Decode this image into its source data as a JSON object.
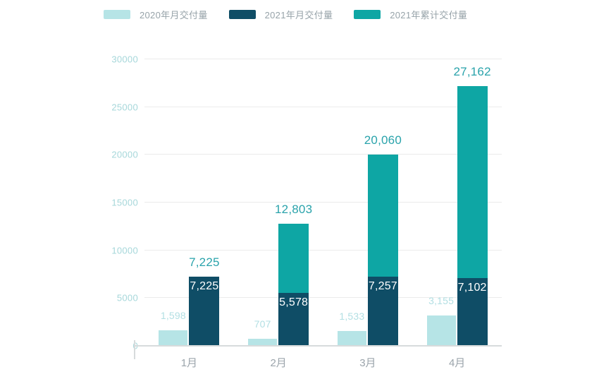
{
  "chart_data": {
    "type": "bar",
    "title": "",
    "categories": [
      "1月",
      "2月",
      "3月",
      "4月"
    ],
    "series": [
      {
        "name": "2020年月交付量",
        "role": "2020-monthly",
        "color": "#b6e4e6",
        "label_color": "#b2dfe3",
        "values": [
          1598,
          707,
          1533,
          3155
        ],
        "labels": [
          "1,598",
          "707",
          "1,533",
          "3,155"
        ]
      },
      {
        "name": "2021年月交付量",
        "role": "2021-monthly",
        "color": "#0f4d66",
        "label_color": "#ffffff",
        "values": [
          7225,
          5578,
          7257,
          7102
        ],
        "labels": [
          "7,225",
          "5,578",
          "7,257",
          "7,102"
        ]
      },
      {
        "name": "2021年累计交付量",
        "role": "2021-cumulative",
        "color": "#0ea6a4",
        "label_color": "#2aa3ab",
        "values": [
          7225,
          12803,
          20060,
          27162
        ],
        "labels": [
          "7,225",
          "12,803",
          "20,060",
          "27,162"
        ]
      }
    ],
    "xlabel": "",
    "ylabel": "",
    "ylim": [
      0,
      30000
    ],
    "yticks": [
      "0",
      "5000",
      "10000",
      "15000",
      "20000",
      "25000",
      "30000"
    ],
    "ytick_values": [
      0,
      5000,
      10000,
      15000,
      20000,
      25000,
      30000
    ],
    "grid": "horizontal",
    "legend_position": "top",
    "stacking_note": "cumulative 2021 series drawn as teal extension above the navy 2021 monthly bar"
  },
  "axis_colors": {
    "y_tick_label": "#a6d7da",
    "x_tick_label": "#9ba4ab",
    "gridline": "#ebebeb",
    "baseline": "#d7dbdc"
  }
}
